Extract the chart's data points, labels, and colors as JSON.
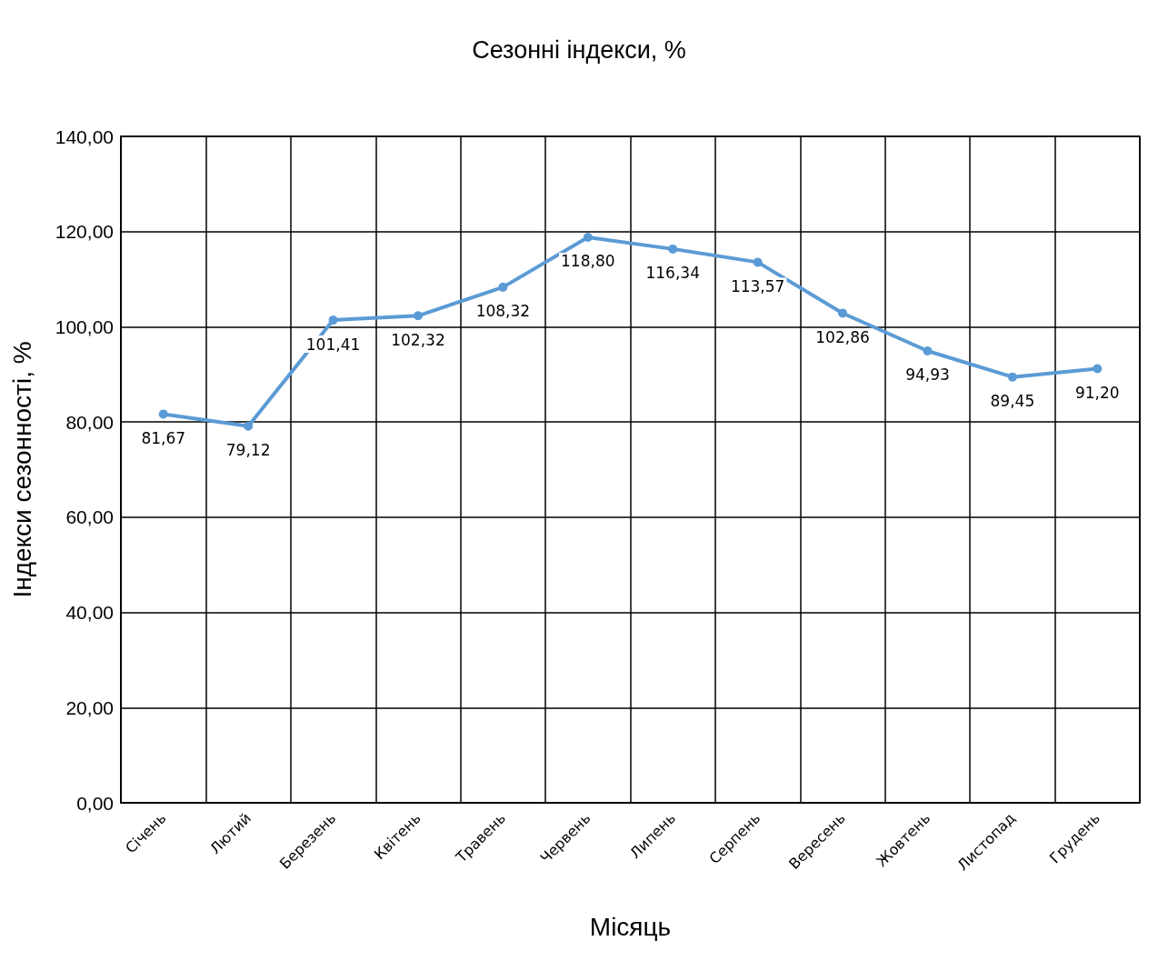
{
  "chart_data": {
    "type": "line",
    "title": "Сезонні індекси, %",
    "xlabel": "Місяць",
    "ylabel": "Індекси сезонності, %",
    "categories": [
      "Січень",
      "Лютий",
      "Березень",
      "Квітень",
      "Травень",
      "Червень",
      "Липень",
      "Серпень",
      "Вересень",
      "Жовтень",
      "Листопад",
      "Грудень"
    ],
    "series": [
      {
        "color": "#5b9bd5",
        "values": [
          81.67,
          79.12,
          101.41,
          102.32,
          108.32,
          118.8,
          116.34,
          113.57,
          102.86,
          94.93,
          89.45,
          91.2
        ],
        "value_labels": [
          "81,67",
          "79,12",
          "101,41",
          "102,32",
          "108,32",
          "118,80",
          "116,34",
          "113,57",
          "102,86",
          "94,93",
          "89,45",
          "91,20"
        ]
      }
    ],
    "ylim": [
      0,
      140
    ],
    "yticks": [
      {
        "value": 0,
        "label": "0,00"
      },
      {
        "value": 20,
        "label": "20,00"
      },
      {
        "value": 40,
        "label": "40,00"
      },
      {
        "value": 60,
        "label": "60,00"
      },
      {
        "value": 80,
        "label": "80,00"
      },
      {
        "value": 100,
        "label": "100,00"
      },
      {
        "value": 120,
        "label": "120,00"
      },
      {
        "value": 140,
        "label": "140,00"
      }
    ],
    "grid": true,
    "marker": "circle",
    "line_style": "solid"
  }
}
